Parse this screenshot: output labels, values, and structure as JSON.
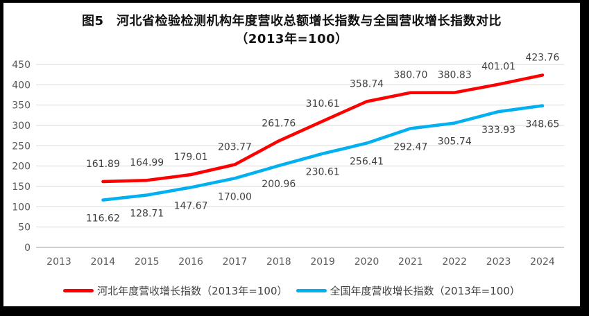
{
  "title": {
    "line1": "图5　河北省检验检测机构年度营收总额增长指数与全国营收增长指数对比",
    "line2": "（2013年=100）"
  },
  "chart_data": {
    "type": "line",
    "title": "图5 河北省检验检测机构年度营收总额增长指数与全国营收增长指数对比（2013年=100）",
    "categories": [
      "2013",
      "2014",
      "2015",
      "2016",
      "2017",
      "2018",
      "2019",
      "2020",
      "2021",
      "2022",
      "2023",
      "2024"
    ],
    "data_start_category_index": 1,
    "series": [
      {
        "name": "河北年度营收增长指数（2013年=100）",
        "color": "#FF0000",
        "values": [
          161.89,
          164.99,
          179.01,
          203.77,
          261.76,
          310.61,
          358.74,
          380.7,
          380.83,
          401.01,
          423.76
        ]
      },
      {
        "name": "全国年度营收增长指数（2013年=100）",
        "color": "#00B0F0",
        "values": [
          116.62,
          128.71,
          147.67,
          170.0,
          200.96,
          230.61,
          256.41,
          292.47,
          305.74,
          333.93,
          348.65
        ]
      }
    ],
    "yticks": [
      0,
      50,
      100,
      150,
      200,
      250,
      300,
      350,
      400,
      450
    ],
    "ylim": [
      0,
      450
    ],
    "xlabel": "",
    "ylabel": "",
    "grid": true,
    "data_labels": true,
    "legend_position": "bottom",
    "colors": {
      "gridline": "#D9D9D9",
      "axis_line": "#BFBFBF",
      "axis_text": "#595959",
      "data_label_text": "#404040"
    }
  }
}
